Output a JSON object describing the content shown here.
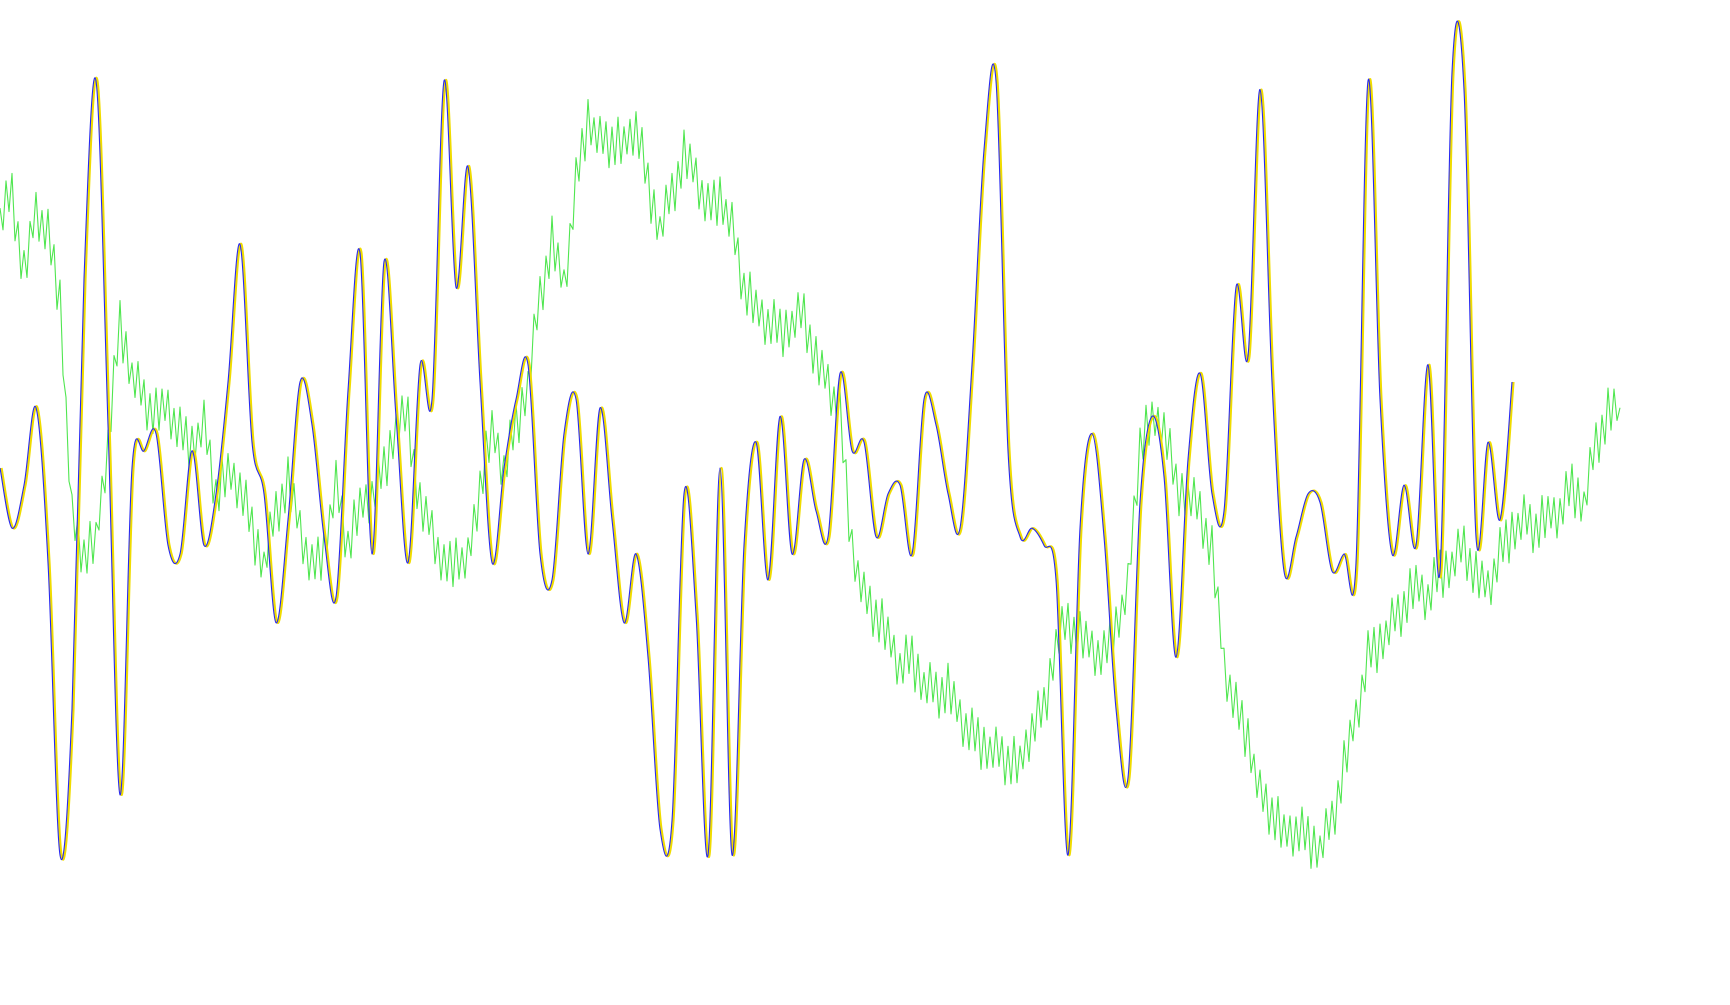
{
  "chart_data": {
    "type": "line",
    "title": "",
    "xlabel": "",
    "ylabel": "",
    "grid": false,
    "legend": "none",
    "xlim": [
      0,
      1568
    ],
    "ylim": [
      0,
      1
    ],
    "x_step": 12,
    "series": [
      {
        "color": "#50e650",
        "noise": 0.035,
        "values": [
          0.79,
          0.82,
          0.72,
          0.8,
          0.77,
          0.7,
          0.44,
          0.4,
          0.41,
          0.53,
          0.67,
          0.61,
          0.58,
          0.56,
          0.57,
          0.54,
          0.53,
          0.55,
          0.47,
          0.49,
          0.48,
          0.43,
          0.39,
          0.45,
          0.48,
          0.43,
          0.38,
          0.41,
          0.48,
          0.41,
          0.45,
          0.47,
          0.5,
          0.55,
          0.56,
          0.45,
          0.43,
          0.38,
          0.4,
          0.39,
          0.48,
          0.54,
          0.5,
          0.55,
          0.6,
          0.7,
          0.76,
          0.71,
          0.83,
          0.91,
          0.88,
          0.88,
          0.87,
          0.9,
          0.83,
          0.78,
          0.82,
          0.86,
          0.84,
          0.8,
          0.82,
          0.78,
          0.71,
          0.68,
          0.67,
          0.66,
          0.67,
          0.68,
          0.62,
          0.6,
          0.56,
          0.41,
          0.35,
          0.33,
          0.3,
          0.27,
          0.28,
          0.25,
          0.24,
          0.24,
          0.21,
          0.19,
          0.18,
          0.17,
          0.16,
          0.15,
          0.2,
          0.22,
          0.3,
          0.32,
          0.3,
          0.29,
          0.28,
          0.32,
          0.36,
          0.53,
          0.55,
          0.55,
          0.48,
          0.47,
          0.45,
          0.4,
          0.27,
          0.22,
          0.19,
          0.12,
          0.1,
          0.07,
          0.08,
          0.07,
          0.06,
          0.09,
          0.15,
          0.21,
          0.28,
          0.3,
          0.32,
          0.34,
          0.36,
          0.35,
          0.38,
          0.39,
          0.41,
          0.37,
          0.36,
          0.4,
          0.43,
          0.44,
          0.43,
          0.44,
          0.45,
          0.48,
          0.46,
          0.53,
          0.56,
          0.57
        ]
      },
      {
        "color": "#f0dc00",
        "noise": 0,
        "values": [
          0.5,
          0.43,
          0.48,
          0.57,
          0.39,
          0.05,
          0.22,
          0.72,
          0.95,
          0.55,
          0.12,
          0.5,
          0.52,
          0.54,
          0.41,
          0.4,
          0.52,
          0.41,
          0.47,
          0.6,
          0.76,
          0.53,
          0.47,
          0.32,
          0.44,
          0.6,
          0.55,
          0.42,
          0.35,
          0.59,
          0.75,
          0.4,
          0.74,
          0.56,
          0.39,
          0.62,
          0.58,
          0.95,
          0.71,
          0.85,
          0.6,
          0.39,
          0.5,
          0.58,
          0.62,
          0.4,
          0.37,
          0.54,
          0.58,
          0.4,
          0.57,
          0.44,
          0.32,
          0.4,
          0.28,
          0.08,
          0.09,
          0.47,
          0.33,
          0.05,
          0.5,
          0.05,
          0.41,
          0.53,
          0.37,
          0.56,
          0.4,
          0.51,
          0.45,
          0.42,
          0.61,
          0.52,
          0.53,
          0.42,
          0.47,
          0.48,
          0.4,
          0.58,
          0.55,
          0.47,
          0.43,
          0.62,
          0.87,
          0.95,
          0.52,
          0.42,
          0.43,
          0.41,
          0.37,
          0.05,
          0.43,
          0.54,
          0.42,
          0.22,
          0.14,
          0.46,
          0.56,
          0.49,
          0.28,
          0.51,
          0.61,
          0.47,
          0.45,
          0.71,
          0.63,
          0.94,
          0.6,
          0.38,
          0.42,
          0.47,
          0.46,
          0.38,
          0.4,
          0.39,
          0.95,
          0.58,
          0.4,
          0.48,
          0.41,
          0.62,
          0.38,
          0.96,
          0.94,
          0.42,
          0.53,
          0.44,
          0.6
        ]
      },
      {
        "color": "#2828f0",
        "noise": 0,
        "values": [
          0.5,
          0.43,
          0.48,
          0.57,
          0.39,
          0.05,
          0.22,
          0.72,
          0.95,
          0.55,
          0.12,
          0.5,
          0.52,
          0.54,
          0.41,
          0.4,
          0.52,
          0.41,
          0.47,
          0.6,
          0.76,
          0.53,
          0.47,
          0.32,
          0.44,
          0.6,
          0.55,
          0.42,
          0.35,
          0.59,
          0.75,
          0.4,
          0.74,
          0.56,
          0.39,
          0.62,
          0.58,
          0.95,
          0.71,
          0.85,
          0.6,
          0.39,
          0.5,
          0.58,
          0.62,
          0.4,
          0.37,
          0.54,
          0.58,
          0.4,
          0.57,
          0.44,
          0.32,
          0.4,
          0.28,
          0.08,
          0.09,
          0.47,
          0.33,
          0.05,
          0.5,
          0.05,
          0.41,
          0.53,
          0.37,
          0.56,
          0.4,
          0.51,
          0.45,
          0.42,
          0.61,
          0.52,
          0.53,
          0.42,
          0.47,
          0.48,
          0.4,
          0.58,
          0.55,
          0.47,
          0.43,
          0.62,
          0.87,
          0.95,
          0.52,
          0.42,
          0.43,
          0.41,
          0.37,
          0.05,
          0.43,
          0.54,
          0.42,
          0.22,
          0.14,
          0.46,
          0.56,
          0.49,
          0.28,
          0.51,
          0.61,
          0.47,
          0.45,
          0.71,
          0.63,
          0.94,
          0.6,
          0.38,
          0.42,
          0.47,
          0.46,
          0.38,
          0.4,
          0.39,
          0.95,
          0.58,
          0.4,
          0.48,
          0.41,
          0.62,
          0.38,
          0.96,
          0.94,
          0.42,
          0.53,
          0.44,
          0.6
        ]
      }
    ]
  }
}
